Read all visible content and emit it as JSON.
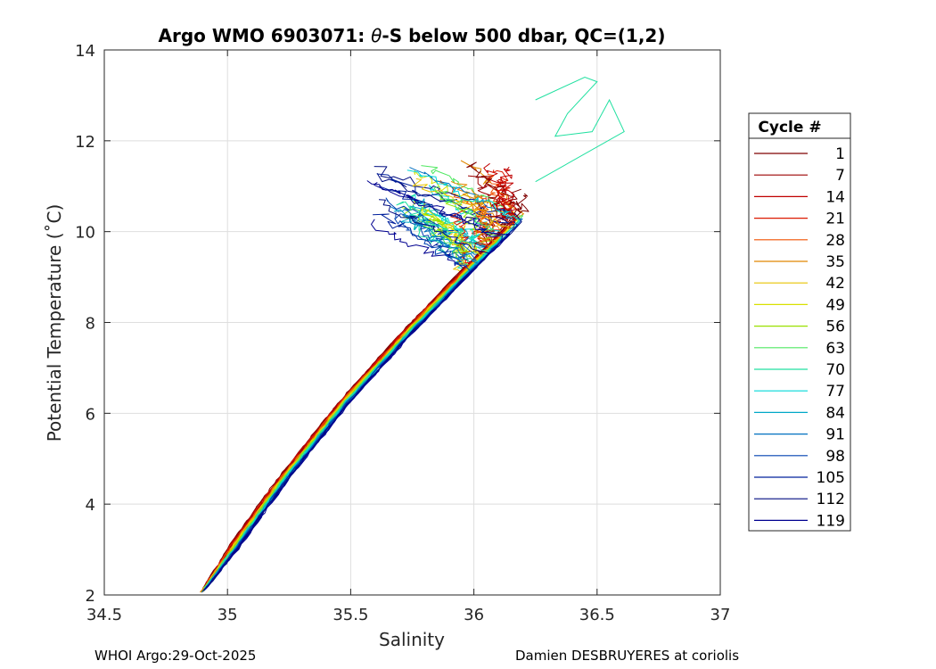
{
  "chart_data": {
    "type": "line",
    "title_prefix": "Argo WMO 6903071: ",
    "title_theta": "θ",
    "title_suffix": "-S below 500 dbar,  QC=(1,2)",
    "xlabel": "Salinity",
    "ylabel": "Potential Temperature (˚C)",
    "xlim": [
      34.5,
      37
    ],
    "ylim": [
      2,
      14
    ],
    "xticks": [
      34.5,
      35,
      35.5,
      36,
      36.5,
      37
    ],
    "xtick_labels": [
      "34.5",
      "35",
      "35.5",
      "36",
      "36.5",
      "37"
    ],
    "yticks": [
      2,
      4,
      6,
      8,
      10,
      12,
      14
    ],
    "ytick_labels": [
      "2",
      "4",
      "6",
      "8",
      "10",
      "12",
      "14"
    ],
    "grid": true,
    "legend_title": "Cycle #",
    "legend_placement": "right, outside plot",
    "series": [
      {
        "name": "1",
        "color": "#7f0000"
      },
      {
        "name": "7",
        "color": "#9c0000"
      },
      {
        "name": "14",
        "color": "#c00000"
      },
      {
        "name": "21",
        "color": "#dc1a00"
      },
      {
        "name": "28",
        "color": "#f05000"
      },
      {
        "name": "35",
        "color": "#e08800"
      },
      {
        "name": "42",
        "color": "#e8c400"
      },
      {
        "name": "49",
        "color": "#d8e000"
      },
      {
        "name": "56",
        "color": "#9ae000"
      },
      {
        "name": "63",
        "color": "#4ee860"
      },
      {
        "name": "70",
        "color": "#20e0a0"
      },
      {
        "name": "77",
        "color": "#00d8d8"
      },
      {
        "name": "84",
        "color": "#00a8c8"
      },
      {
        "name": "91",
        "color": "#0070c0"
      },
      {
        "name": "98",
        "color": "#0040b0"
      },
      {
        "name": "105",
        "color": "#00209c"
      },
      {
        "name": "112",
        "color": "#000c80"
      },
      {
        "name": "119",
        "color": "#000090"
      }
    ],
    "upper_envelope": [
      [
        34.89,
        2.05
      ],
      [
        35.0,
        3.1
      ],
      [
        35.2,
        4.6
      ],
      [
        35.45,
        6.3
      ],
      [
        35.7,
        7.8
      ],
      [
        35.95,
        9.2
      ],
      [
        36.25,
        10.8
      ],
      [
        36.45,
        11.6
      ]
    ],
    "lower_envelope": [
      [
        34.9,
        2.05
      ],
      [
        35.05,
        3.0
      ],
      [
        35.25,
        4.5
      ],
      [
        35.5,
        6.2
      ],
      [
        35.75,
        7.7
      ],
      [
        36.0,
        9.1
      ],
      [
        36.3,
        10.7
      ],
      [
        36.5,
        11.5
      ]
    ],
    "warm_region": {
      "s_range": [
        35.55,
        36.25
      ],
      "t_range": [
        9.3,
        11.7
      ]
    },
    "outlier_loop": [
      [
        36.25,
        12.9
      ],
      [
        36.45,
        13.4
      ],
      [
        36.5,
        13.3
      ],
      [
        36.38,
        12.6
      ],
      [
        36.33,
        12.1
      ],
      [
        36.48,
        12.2
      ],
      [
        36.55,
        12.9
      ],
      [
        36.61,
        12.2
      ],
      [
        36.25,
        11.1
      ]
    ]
  },
  "footer": {
    "left": "WHOI Argo:29-Oct-2025",
    "right": "Damien DESBRUYERES at coriolis"
  }
}
